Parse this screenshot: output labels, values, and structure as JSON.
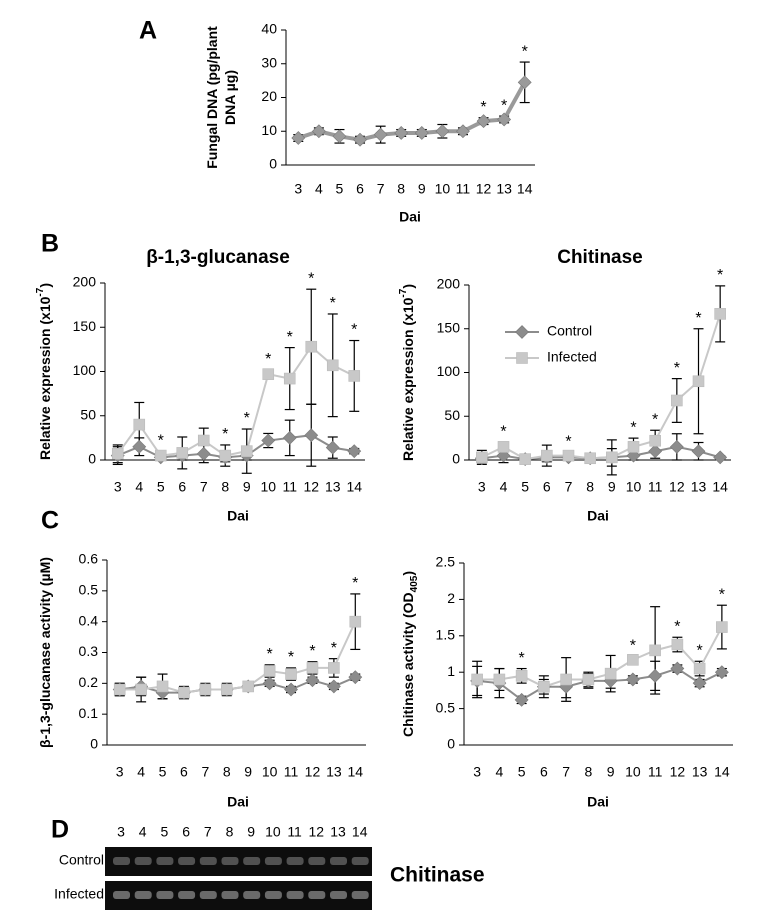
{
  "chart_data": [
    {
      "type": "line",
      "panel": "A",
      "y_label": [
        "Fungal DNA (pg/plant",
        "DNA µg)"
      ],
      "x_label": "Dai",
      "categories": [
        "3",
        "4",
        "5",
        "6",
        "7",
        "8",
        "9",
        "10",
        "11",
        "12",
        "13",
        "14"
      ],
      "ylim": [
        0,
        40
      ],
      "yticks": [
        0,
        10,
        20,
        30,
        40
      ],
      "series": [
        {
          "color": "#9a9a9a",
          "marker": "diamond",
          "values": [
            8,
            10,
            8.5,
            7.5,
            9,
            9.5,
            9.5,
            10,
            10,
            13,
            13.5,
            24.5
          ],
          "errors": [
            1,
            1,
            2,
            1,
            2.5,
            1,
            1,
            2,
            1,
            1,
            1,
            6
          ]
        }
      ],
      "significance": [
        null,
        null,
        null,
        null,
        null,
        null,
        null,
        null,
        null,
        "*",
        "*",
        "*"
      ]
    },
    {
      "type": "line",
      "panel": "B",
      "title": "β-1,3-glucanase",
      "y_label": [
        "Relative expression (x10"
      ],
      "y_label_sup": "-7",
      "y_label_tail": ")",
      "x_label": "Dai",
      "categories": [
        "3",
        "4",
        "5",
        "6",
        "7",
        "8",
        "9",
        "10",
        "11",
        "12",
        "13",
        "14"
      ],
      "ylim": [
        0,
        200
      ],
      "yticks": [
        0,
        50,
        100,
        150,
        200
      ],
      "series": [
        {
          "name": "Control",
          "color": "#8c8c8c",
          "marker": "diamond",
          "values": [
            5,
            15,
            3,
            5,
            7,
            3,
            5,
            22,
            25,
            28,
            14,
            10
          ],
          "errors": [
            10,
            10,
            3,
            5,
            10,
            5,
            5,
            8,
            20,
            35,
            12,
            3
          ]
        },
        {
          "name": "Infected",
          "color": "#c8c8c8",
          "marker": "square",
          "values": [
            7,
            40,
            5,
            8,
            22,
            5,
            10,
            97,
            92,
            128,
            107,
            95
          ],
          "errors": [
            10,
            25,
            5,
            18,
            14,
            12,
            25,
            5,
            35,
            65,
            58,
            40
          ]
        }
      ],
      "significance": [
        null,
        null,
        "*",
        null,
        null,
        "*",
        "*",
        "*",
        "*",
        "*",
        "*",
        "*"
      ]
    },
    {
      "type": "line",
      "title": "Chitinase",
      "y_label": [
        "Relative expression (x10"
      ],
      "y_label_sup": "-7",
      "y_label_tail": ")",
      "x_label": "Dai",
      "categories": [
        "3",
        "4",
        "5",
        "6",
        "7",
        "8",
        "9",
        "10",
        "11",
        "12",
        "13",
        "14"
      ],
      "ylim": [
        0,
        200
      ],
      "yticks": [
        0,
        50,
        100,
        150,
        200
      ],
      "legend": "upper-left",
      "series": [
        {
          "name": "Control",
          "color": "#8c8c8c",
          "marker": "diamond",
          "values": [
            2,
            5,
            1,
            3,
            3,
            2,
            3,
            5,
            10,
            15,
            10,
            3
          ],
          "errors": [
            5,
            8,
            3,
            5,
            3,
            2,
            10,
            5,
            8,
            15,
            10,
            2
          ]
        },
        {
          "name": "Infected",
          "color": "#c8c8c8",
          "marker": "square",
          "values": [
            3,
            15,
            1,
            5,
            5,
            2,
            3,
            15,
            22,
            68,
            90,
            167
          ],
          "errors": [
            8,
            5,
            5,
            12,
            4,
            3,
            20,
            10,
            12,
            25,
            60,
            32
          ]
        }
      ],
      "significance": [
        null,
        "*",
        null,
        null,
        "*",
        null,
        null,
        "*",
        "*",
        "*",
        "*",
        "*"
      ]
    },
    {
      "type": "line",
      "panel": "C",
      "y_label": [
        "β-1,3-glucanase activity (µM)"
      ],
      "x_label": "Dai",
      "categories": [
        "3",
        "4",
        "5",
        "6",
        "7",
        "8",
        "9",
        "10",
        "11",
        "12",
        "13",
        "14"
      ],
      "ylim": [
        0,
        0.6
      ],
      "yticks": [
        0,
        0.1,
        0.2,
        0.3,
        0.4,
        0.5,
        0.6
      ],
      "series": [
        {
          "name": "Control",
          "color": "#8c8c8c",
          "marker": "diamond",
          "values": [
            0.18,
            0.19,
            0.17,
            0.17,
            0.18,
            0.18,
            0.19,
            0.2,
            0.18,
            0.21,
            0.19,
            0.22
          ],
          "errors": [
            0.02,
            0.03,
            0.02,
            0.01,
            0.01,
            0.01,
            0.01,
            0.01,
            0.01,
            0.01,
            0.01,
            0.01
          ]
        },
        {
          "name": "Infected",
          "color": "#c8c8c8",
          "marker": "square",
          "values": [
            0.18,
            0.18,
            0.19,
            0.17,
            0.18,
            0.18,
            0.19,
            0.24,
            0.23,
            0.25,
            0.25,
            0.4
          ],
          "errors": [
            0.02,
            0.04,
            0.04,
            0.02,
            0.02,
            0.02,
            0.01,
            0.02,
            0.02,
            0.02,
            0.03,
            0.09
          ]
        }
      ],
      "significance": [
        null,
        null,
        null,
        null,
        null,
        null,
        null,
        "*",
        "*",
        "*",
        "*",
        "*"
      ]
    },
    {
      "type": "line",
      "y_label": [
        "Chitinase activity  (OD"
      ],
      "y_label_sub": "405",
      "y_label_tail": ")",
      "x_label": "Dai",
      "categories": [
        "3",
        "4",
        "5",
        "6",
        "7",
        "8",
        "9",
        "10",
        "11",
        "12",
        "13",
        "14"
      ],
      "ylim": [
        0,
        2.5
      ],
      "yticks": [
        0,
        0.5,
        1,
        1.5,
        2,
        2.5
      ],
      "series": [
        {
          "name": "Control",
          "color": "#8c8c8c",
          "marker": "diamond",
          "values": [
            0.88,
            0.85,
            0.62,
            0.8,
            0.8,
            0.88,
            0.88,
            0.9,
            0.95,
            1.05,
            0.85,
            1.0
          ],
          "errors": [
            0.2,
            0.2,
            0.05,
            0.1,
            0.15,
            0.1,
            0.1,
            0.05,
            0.2,
            0.05,
            0.05,
            0.05
          ]
        },
        {
          "name": "Infected",
          "color": "#c8c8c8",
          "marker": "square",
          "values": [
            0.9,
            0.9,
            0.95,
            0.8,
            0.9,
            0.9,
            0.98,
            1.17,
            1.3,
            1.38,
            1.05,
            1.62
          ],
          "errors": [
            0.25,
            0.15,
            0.1,
            0.15,
            0.3,
            0.1,
            0.25,
            0.05,
            0.6,
            0.1,
            0.1,
            0.3
          ]
        }
      ],
      "significance": [
        null,
        null,
        "*",
        null,
        null,
        null,
        null,
        "*",
        null,
        "*",
        "*",
        "*"
      ]
    }
  ],
  "gel": {
    "panel": "D",
    "lanes": [
      "3",
      "4",
      "5",
      "6",
      "7",
      "8",
      "9",
      "10",
      "11",
      "12",
      "13",
      "14"
    ],
    "rows": [
      "Control",
      "Infected"
    ],
    "label": "Chitinase"
  }
}
